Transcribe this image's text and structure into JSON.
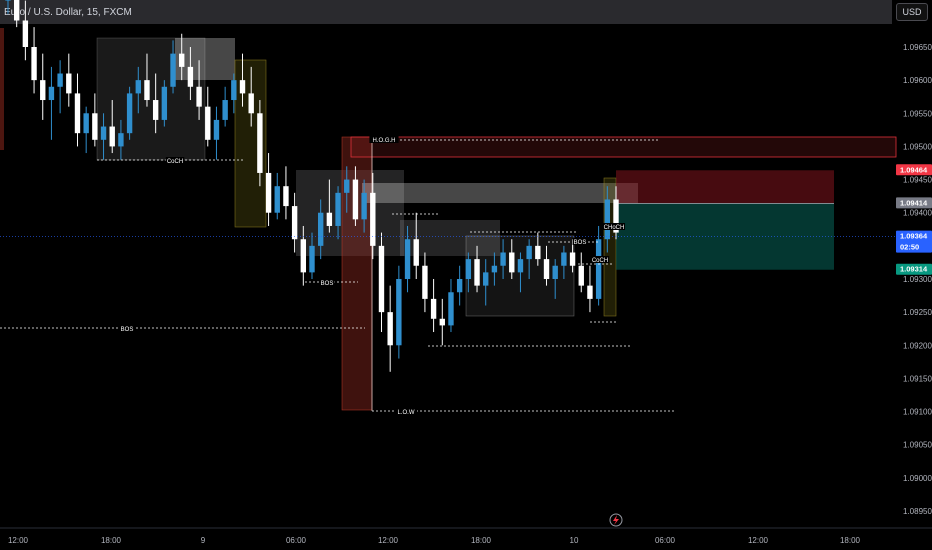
{
  "header": {
    "title": "Euro / U.S. Dollar, 15, FXCM",
    "currency": "USD"
  },
  "chart_data": {
    "type": "candlestick",
    "symbol": "Euro / U.S. Dollar",
    "timeframe": "15",
    "source": "FXCM",
    "ylim": [
      1.0893,
      1.0978
    ],
    "y_ticks": [
      1.0965,
      1.096,
      1.0955,
      1.095,
      1.0945,
      1.094,
      1.0935,
      1.093,
      1.0925,
      1.092,
      1.0915,
      1.091,
      1.0905,
      1.09,
      1.0895
    ],
    "x_ticks": [
      "12:00",
      "18:00",
      "9",
      "06:00",
      "12:00",
      "18:00",
      "10",
      "06:00",
      "12:00",
      "18:00"
    ],
    "price_tags": [
      {
        "label": "1.09464",
        "value": 1.09464,
        "color": "#f23645"
      },
      {
        "label": "1.09414",
        "value": 1.09414,
        "color": "#787b86"
      },
      {
        "label": "1.09364",
        "value": 1.09364,
        "color": "#2962ff",
        "countdown": "02:50"
      },
      {
        "label": "1.09314",
        "value": 1.09314,
        "color": "#089981"
      }
    ],
    "annotations": [
      {
        "text": "CoCH",
        "value": 1.0948
      },
      {
        "text": "H.O.G.H",
        "value": 1.09515
      },
      {
        "text": "BOS",
        "value": 1.0929
      },
      {
        "text": "BOS",
        "value": 1.09225
      },
      {
        "text": "BOS",
        "value": 1.09345
      },
      {
        "text": "CoCH",
        "value": 1.0933
      },
      {
        "text": "CHoCH",
        "value": 1.0938
      },
      {
        "text": "L.O.W",
        "value": 1.09103
      }
    ],
    "trade": {
      "entry": 1.09414,
      "stop": 1.09464,
      "target": 1.09314
    },
    "ohlc": [
      [
        1.0972,
        1.0976,
        1.097,
        1.0974
      ],
      [
        1.0974,
        1.0977,
        1.0968,
        1.0969
      ],
      [
        1.0969,
        1.0972,
        1.0963,
        1.0965
      ],
      [
        1.0965,
        1.0968,
        1.0958,
        1.096
      ],
      [
        1.096,
        1.0964,
        1.0954,
        1.0957
      ],
      [
        1.0957,
        1.0962,
        1.0951,
        1.0959
      ],
      [
        1.0959,
        1.0963,
        1.0955,
        1.0961
      ],
      [
        1.0961,
        1.0964,
        1.0956,
        1.0958
      ],
      [
        1.0958,
        1.0961,
        1.095,
        1.0952
      ],
      [
        1.0952,
        1.0956,
        1.0949,
        1.0955
      ],
      [
        1.0955,
        1.0958,
        1.095,
        1.0951
      ],
      [
        1.0951,
        1.0955,
        1.0948,
        1.0953
      ],
      [
        1.0953,
        1.0957,
        1.0949,
        1.095
      ],
      [
        1.095,
        1.0954,
        1.0948,
        1.0952
      ],
      [
        1.0952,
        1.0959,
        1.0951,
        1.0958
      ],
      [
        1.0958,
        1.0962,
        1.0955,
        1.096
      ],
      [
        1.096,
        1.0964,
        1.0956,
        1.0957
      ],
      [
        1.0957,
        1.0961,
        1.0952,
        1.0954
      ],
      [
        1.0954,
        1.096,
        1.0953,
        1.0959
      ],
      [
        1.0959,
        1.0966,
        1.0958,
        1.0964
      ],
      [
        1.0964,
        1.0967,
        1.096,
        1.0962
      ],
      [
        1.0962,
        1.0965,
        1.0957,
        1.0959
      ],
      [
        1.0959,
        1.0963,
        1.0954,
        1.0956
      ],
      [
        1.0956,
        1.0959,
        1.095,
        1.0951
      ],
      [
        1.0951,
        1.0956,
        1.0948,
        1.0954
      ],
      [
        1.0954,
        1.0959,
        1.0953,
        1.0957
      ],
      [
        1.0957,
        1.0961,
        1.0955,
        1.096
      ],
      [
        1.096,
        1.0964,
        1.0956,
        1.0958
      ],
      [
        1.0958,
        1.0962,
        1.0953,
        1.0955
      ],
      [
        1.0955,
        1.0957,
        1.0944,
        1.0946
      ],
      [
        1.0946,
        1.0949,
        1.0938,
        1.094
      ],
      [
        1.094,
        1.0946,
        1.0939,
        1.0944
      ],
      [
        1.0944,
        1.0947,
        1.0939,
        1.0941
      ],
      [
        1.0941,
        1.0943,
        1.0934,
        1.0936
      ],
      [
        1.0936,
        1.0938,
        1.0929,
        1.0931
      ],
      [
        1.0931,
        1.0937,
        1.093,
        1.0935
      ],
      [
        1.0935,
        1.0942,
        1.0933,
        1.094
      ],
      [
        1.094,
        1.0945,
        1.0937,
        1.0938
      ],
      [
        1.0938,
        1.0944,
        1.0936,
        1.0943
      ],
      [
        1.0943,
        1.0947,
        1.094,
        1.0945
      ],
      [
        1.0945,
        1.0947,
        1.0938,
        1.0939
      ],
      [
        1.0939,
        1.0945,
        1.0937,
        1.0943
      ],
      [
        1.0943,
        1.0946,
        1.0933,
        1.0935
      ],
      [
        1.0935,
        1.0937,
        1.0922,
        1.0925
      ],
      [
        1.0925,
        1.0929,
        1.0916,
        1.092
      ],
      [
        1.092,
        1.0932,
        1.0918,
        1.093
      ],
      [
        1.093,
        1.0938,
        1.0928,
        1.0936
      ],
      [
        1.0936,
        1.094,
        1.093,
        1.0932
      ],
      [
        1.0932,
        1.0934,
        1.0925,
        1.0927
      ],
      [
        1.0927,
        1.093,
        1.0922,
        1.0924
      ],
      [
        1.0924,
        1.0927,
        1.092,
        1.0923
      ],
      [
        1.0923,
        1.093,
        1.0922,
        1.0928
      ],
      [
        1.0928,
        1.0932,
        1.0926,
        1.093
      ],
      [
        1.093,
        1.0934,
        1.0928,
        1.0933
      ],
      [
        1.0933,
        1.0935,
        1.0928,
        1.0929
      ],
      [
        1.0929,
        1.0933,
        1.0926,
        1.0931
      ],
      [
        1.0931,
        1.0934,
        1.0929,
        1.0932
      ],
      [
        1.0932,
        1.0936,
        1.093,
        1.0934
      ],
      [
        1.0934,
        1.0936,
        1.093,
        1.0931
      ],
      [
        1.0931,
        1.0934,
        1.0928,
        1.0933
      ],
      [
        1.0933,
        1.0936,
        1.093,
        1.0935
      ],
      [
        1.0935,
        1.0937,
        1.0932,
        1.0933
      ],
      [
        1.0933,
        1.0935,
        1.0929,
        1.093
      ],
      [
        1.093,
        1.0933,
        1.0927,
        1.0932
      ],
      [
        1.0932,
        1.0935,
        1.093,
        1.0934
      ],
      [
        1.0934,
        1.0936,
        1.0931,
        1.0932
      ],
      [
        1.0932,
        1.0934,
        1.0928,
        1.0929
      ],
      [
        1.0929,
        1.0932,
        1.0925,
        1.0927
      ],
      [
        1.0927,
        1.0938,
        1.0926,
        1.0936
      ],
      [
        1.0936,
        1.0944,
        1.0934,
        1.0942
      ],
      [
        1.0942,
        1.0944,
        1.0936,
        1.0937
      ]
    ]
  }
}
